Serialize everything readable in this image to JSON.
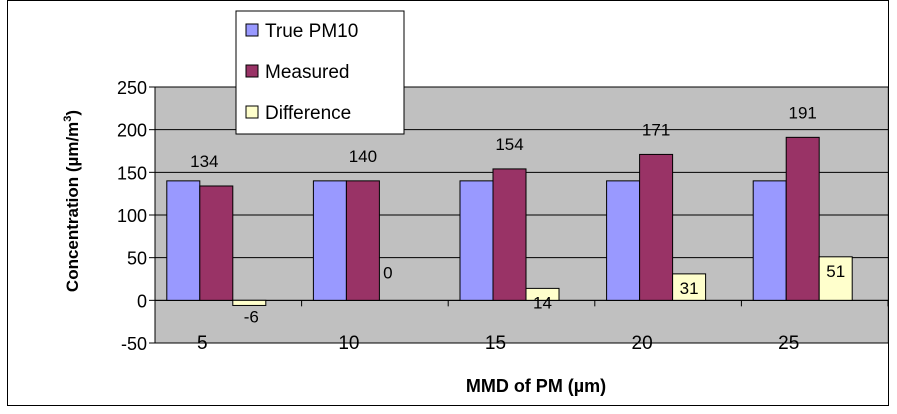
{
  "chart_data": {
    "type": "bar",
    "title": "",
    "xlabel": "MMD of PM (µm)",
    "ylabel": "Concentration (µm/m",
    "ylabel_superscript": "3",
    "ylabel_close": ")",
    "categories": [
      "5",
      "10",
      "15",
      "20",
      "25"
    ],
    "ylim": [
      -50,
      250
    ],
    "yticks": [
      "-50",
      "0",
      "50",
      "100",
      "150",
      "200",
      "250"
    ],
    "grid": true,
    "legend_position": "top-center",
    "series": [
      {
        "name": "True PM10",
        "values": [
          140,
          140,
          140,
          140,
          140
        ],
        "color": "#9999ff",
        "labels": [
          "",
          "",
          "",
          "",
          ""
        ]
      },
      {
        "name": "Measured",
        "values": [
          134,
          140,
          154,
          171,
          191
        ],
        "color": "#993366",
        "labels": [
          "134",
          "140",
          "154",
          "171",
          "191"
        ]
      },
      {
        "name": "Difference",
        "values": [
          -6,
          0,
          14,
          31,
          51
        ],
        "color": "#ffffcc",
        "labels": [
          "-6",
          "0",
          "14",
          "31",
          "51"
        ]
      }
    ],
    "plot_background": "#c0c0c0"
  }
}
